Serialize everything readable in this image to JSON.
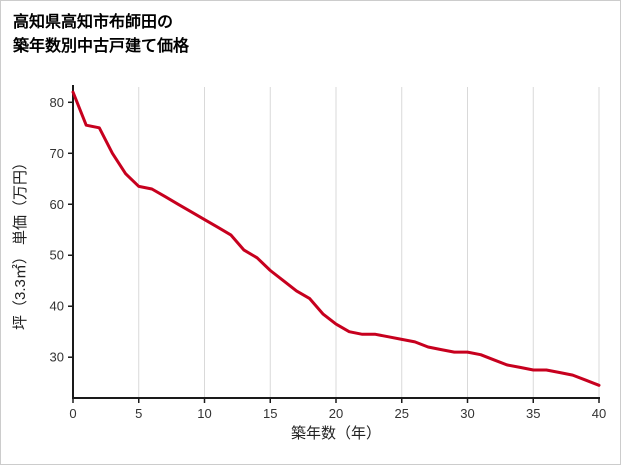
{
  "header": {
    "title_line1": "高知県高知市布師田の",
    "title_line2": "築年数別中古戸建て価格"
  },
  "chart_data": {
    "type": "line",
    "title": "高知県高知市布師田の築年数別中古戸建て価格",
    "xlabel": "築年数（年）",
    "ylabel": "坪（3.3㎡） 単価（万円）",
    "xlim": [
      0,
      40
    ],
    "ylim": [
      22,
      83
    ],
    "x_ticks": [
      0,
      5,
      10,
      15,
      20,
      25,
      30,
      35,
      40
    ],
    "y_ticks": [
      30,
      40,
      50,
      60,
      70,
      80
    ],
    "grid": "vertical-only",
    "legend": "none",
    "colors": {
      "line": "#c7001e",
      "grid": "#d9d9d9",
      "axis": "#1a1a1a",
      "text": "#333333"
    },
    "series": [
      {
        "name": "坪単価（万円）",
        "x": [
          0,
          1,
          2,
          3,
          4,
          5,
          6,
          7,
          8,
          9,
          10,
          11,
          12,
          13,
          14,
          15,
          16,
          17,
          18,
          19,
          20,
          21,
          22,
          23,
          24,
          25,
          26,
          27,
          28,
          29,
          30,
          31,
          32,
          33,
          34,
          35,
          36,
          37,
          38,
          39,
          40
        ],
        "values": [
          82,
          75.5,
          75,
          70,
          66,
          63.5,
          63,
          61.5,
          60,
          58.5,
          57,
          55.5,
          54,
          51,
          49.5,
          47,
          45,
          43,
          41.5,
          38.5,
          36.5,
          35,
          34.5,
          34.5,
          34,
          33.5,
          33,
          32,
          31.5,
          31,
          31,
          30.5,
          29.5,
          28.5,
          28,
          27.5,
          27.5,
          27,
          26.5,
          25.5,
          24.5
        ]
      }
    ]
  }
}
